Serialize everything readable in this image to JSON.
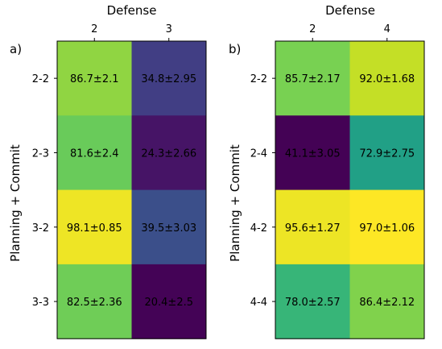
{
  "chart_data": [
    {
      "type": "heatmap",
      "panel_label": "a)",
      "xlabel": "Defense",
      "ylabel": "Planning + Commit",
      "x_categories": [
        "2",
        "3"
      ],
      "y_categories": [
        "2-2",
        "2-3",
        "3-2",
        "3-3"
      ],
      "colormap": "viridis",
      "color_range": [
        20,
        100
      ],
      "cells": [
        [
          {
            "mean": 86.7,
            "std": 2.1,
            "text": "86.7±2.1"
          },
          {
            "mean": 34.8,
            "std": 2.95,
            "text": "34.8±2.95"
          }
        ],
        [
          {
            "mean": 81.6,
            "std": 2.4,
            "text": "81.6±2.4"
          },
          {
            "mean": 24.3,
            "std": 2.66,
            "text": "24.3±2.66"
          }
        ],
        [
          {
            "mean": 98.1,
            "std": 0.85,
            "text": "98.1±0.85"
          },
          {
            "mean": 39.5,
            "std": 3.03,
            "text": "39.5±3.03"
          }
        ],
        [
          {
            "mean": 82.5,
            "std": 2.36,
            "text": "82.5±2.36"
          },
          {
            "mean": 20.4,
            "std": 2.5,
            "text": "20.4±2.5"
          }
        ]
      ]
    },
    {
      "type": "heatmap",
      "panel_label": "b)",
      "xlabel": "Defense",
      "ylabel": "Planning + Commit",
      "x_categories": [
        "2",
        "4"
      ],
      "y_categories": [
        "2-2",
        "2-4",
        "4-2",
        "4-4"
      ],
      "colormap": "viridis",
      "color_range": [
        41,
        97
      ],
      "cells": [
        [
          {
            "mean": 85.7,
            "std": 2.17,
            "text": "85.7±2.17"
          },
          {
            "mean": 92.0,
            "std": 1.68,
            "text": "92.0±1.68"
          }
        ],
        [
          {
            "mean": 41.1,
            "std": 3.05,
            "text": "41.1±3.05"
          },
          {
            "mean": 72.9,
            "std": 2.75,
            "text": "72.9±2.75"
          }
        ],
        [
          {
            "mean": 95.6,
            "std": 1.27,
            "text": "95.6±1.27"
          },
          {
            "mean": 97.0,
            "std": 1.06,
            "text": "97.0±1.06"
          }
        ],
        [
          {
            "mean": 78.0,
            "std": 2.57,
            "text": "78.0±2.57"
          },
          {
            "mean": 86.4,
            "std": 2.12,
            "text": "86.4±2.12"
          }
        ]
      ]
    }
  ]
}
